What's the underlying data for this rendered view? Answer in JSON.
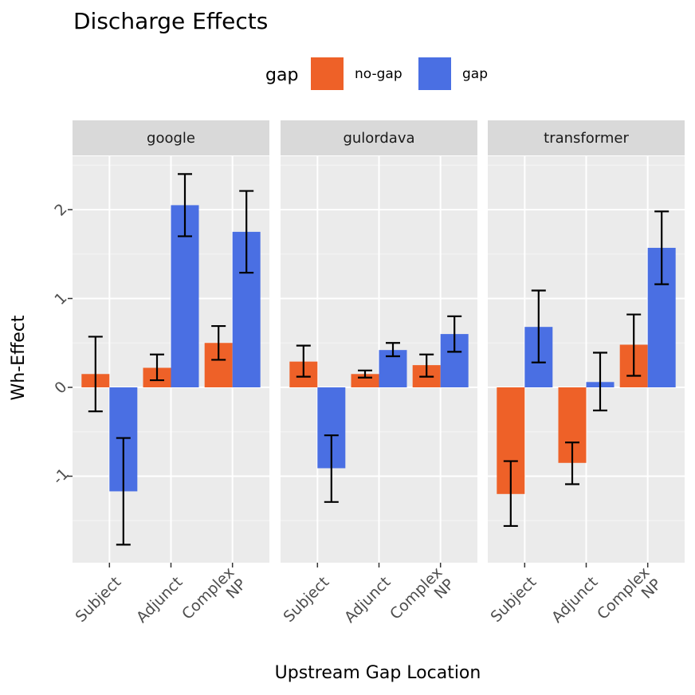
{
  "chart_data": {
    "type": "bar",
    "title": "Discharge Effects",
    "xlabel": "Upstream Gap Location",
    "ylabel": "Wh-Effect",
    "legend": {
      "title": "gap",
      "position": "top",
      "entries": [
        {
          "name": "no-gap",
          "color": "#EE6128"
        },
        {
          "name": "gap",
          "color": "#4A6FE3"
        }
      ]
    },
    "ylim": [
      -1.97,
      2.5
    ],
    "yticks": [
      -1,
      0,
      1,
      2
    ],
    "ytick_labels": [
      "-1",
      "0",
      "1",
      "2"
    ],
    "categories": [
      "Subject",
      "Adjunct",
      "Complex NP"
    ],
    "category_tick_lines": [
      [
        "Subject"
      ],
      [
        "Adjunct"
      ],
      [
        "Complex",
        "NP"
      ]
    ],
    "panels": [
      {
        "name": "google",
        "series": [
          {
            "name": "no-gap",
            "values": [
              0.15,
              0.22,
              0.5
            ],
            "err_low": [
              -0.27,
              0.08,
              0.31
            ],
            "err_high": [
              0.57,
              0.37,
              0.69
            ]
          },
          {
            "name": "gap",
            "values": [
              -1.17,
              2.05,
              1.75
            ],
            "err_low": [
              -1.77,
              1.7,
              1.29
            ],
            "err_high": [
              -0.57,
              2.4,
              2.21
            ]
          }
        ]
      },
      {
        "name": "gulordava",
        "series": [
          {
            "name": "no-gap",
            "values": [
              0.29,
              0.15,
              0.25
            ],
            "err_low": [
              0.12,
              0.11,
              0.12
            ],
            "err_high": [
              0.47,
              0.19,
              0.37
            ]
          },
          {
            "name": "gap",
            "values": [
              -0.91,
              0.42,
              0.6
            ],
            "err_low": [
              -1.29,
              0.35,
              0.4
            ],
            "err_high": [
              -0.54,
              0.5,
              0.8
            ]
          }
        ]
      },
      {
        "name": "transformer",
        "series": [
          {
            "name": "no-gap",
            "values": [
              -1.2,
              -0.85,
              0.48
            ],
            "err_low": [
              -1.56,
              -1.09,
              0.13
            ],
            "err_high": [
              -0.83,
              -0.62,
              0.82
            ]
          },
          {
            "name": "gap",
            "values": [
              0.68,
              0.06,
              1.57
            ],
            "err_low": [
              0.28,
              -0.26,
              1.16
            ],
            "err_high": [
              1.09,
              0.39,
              1.98
            ]
          }
        ]
      }
    ]
  }
}
